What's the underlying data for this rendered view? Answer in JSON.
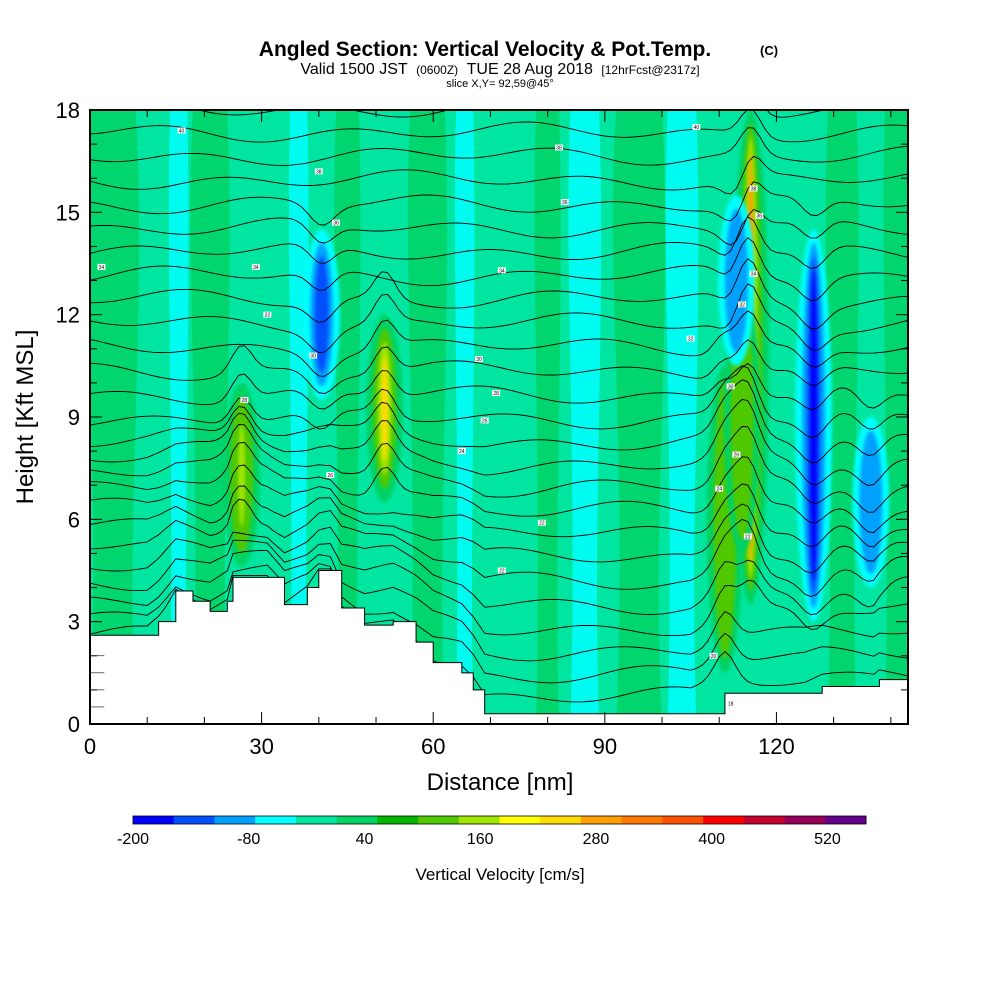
{
  "header": {
    "title": "Angled Section: Vertical Velocity & Pot.Temp.",
    "title_unit": "(C)",
    "valid_prefix": "Valid 1500 JST",
    "valid_utc": "(0600Z)",
    "valid_date": "TUE 28 Aug 2018",
    "forecast_info": "[12hrFcst@2317z]",
    "slice_info": "slice X,Y= 92,59@45°"
  },
  "chart_data": {
    "type": "heatmap",
    "xlabel": "Distance [nm]",
    "ylabel": "Height [Kft MSL]",
    "xlim": [
      0,
      143
    ],
    "ylim": [
      0,
      18
    ],
    "x_ticks": [
      0,
      30,
      60,
      90,
      120
    ],
    "y_ticks": [
      0,
      3,
      6,
      9,
      12,
      15,
      18
    ],
    "colorbar": {
      "label": "Vertical Velocity [cm/s]",
      "tick_labels": [
        "-200",
        "-80",
        "40",
        "160",
        "280",
        "400",
        "520"
      ],
      "tick_values": [
        -200,
        -80,
        40,
        160,
        280,
        400,
        520
      ],
      "range": [
        -200,
        560
      ],
      "colors": [
        "#0000ff",
        "#0050ff",
        "#00a0ff",
        "#00ffff",
        "#00e6a0",
        "#00d264",
        "#00b400",
        "#50c800",
        "#a0e600",
        "#ffff00",
        "#ffdc00",
        "#ffa000",
        "#ff7800",
        "#ff5000",
        "#ff0000",
        "#c80032",
        "#96005a",
        "#64008c"
      ]
    },
    "terrain": [
      [
        0,
        2.6
      ],
      [
        10,
        2.6
      ],
      [
        12,
        3
      ],
      [
        15,
        3.9
      ],
      [
        18,
        3.6
      ],
      [
        21,
        3.3
      ],
      [
        24,
        3.6
      ],
      [
        25,
        4.3
      ],
      [
        31,
        4.3
      ],
      [
        34,
        3.5
      ],
      [
        38,
        4.0
      ],
      [
        40,
        4.5
      ],
      [
        42,
        4.5
      ],
      [
        44,
        3.4
      ],
      [
        48,
        2.9
      ],
      [
        53,
        3.0
      ],
      [
        57,
        2.4
      ],
      [
        60,
        1.8
      ],
      [
        65,
        1.5
      ],
      [
        67,
        1.0
      ],
      [
        69,
        0.3
      ],
      [
        105,
        0.3
      ],
      [
        111,
        0.9
      ],
      [
        125,
        0.9
      ],
      [
        128,
        1.1
      ],
      [
        137,
        1.1
      ],
      [
        138,
        1.3
      ],
      [
        143,
        1.3
      ]
    ],
    "updraft_bands": [
      {
        "x": 26.5,
        "y0": 4.6,
        "y1": 10.0,
        "peak": 150
      },
      {
        "x": 51.5,
        "y0": 6.5,
        "y1": 12.0,
        "peak": 230
      },
      {
        "x": 111,
        "y0": 1.5,
        "y1": 10.5,
        "peak": 120
      },
      {
        "x": 115.5,
        "y0": 3.5,
        "y1": 18.0,
        "peak": 300
      },
      {
        "x": 114,
        "y0": 5.0,
        "y1": 13.0,
        "peak": 130
      }
    ],
    "downdraft_bands": [
      {
        "x": 126.5,
        "y0": 3.0,
        "y1": 14.5,
        "peak": -180
      },
      {
        "x": 136.5,
        "y0": 4.0,
        "y1": 9.0,
        "peak": -110
      },
      {
        "x": 40.5,
        "y0": 9.5,
        "y1": 14.5,
        "peak": -120
      },
      {
        "x": 113,
        "y0": 10.5,
        "y1": 15.5,
        "peak": -110
      }
    ],
    "contour_labels": [
      {
        "x": 16,
        "y": 17.4,
        "text": "40"
      },
      {
        "x": 40,
        "y": 16.2,
        "text": "38"
      },
      {
        "x": 43,
        "y": 14.7,
        "text": "36"
      },
      {
        "x": 2,
        "y": 13.4,
        "text": "34"
      },
      {
        "x": 29,
        "y": 13.4,
        "text": "34"
      },
      {
        "x": 31,
        "y": 12.0,
        "text": "32"
      },
      {
        "x": 39,
        "y": 10.8,
        "text": "30"
      },
      {
        "x": 27,
        "y": 9.5,
        "text": "28"
      },
      {
        "x": 42,
        "y": 7.3,
        "text": "26"
      },
      {
        "x": 65,
        "y": 8.0,
        "text": "24"
      },
      {
        "x": 69,
        "y": 8.9,
        "text": "26"
      },
      {
        "x": 71,
        "y": 9.7,
        "text": "28"
      },
      {
        "x": 68,
        "y": 10.7,
        "text": "30"
      },
      {
        "x": 72,
        "y": 13.3,
        "text": "34"
      },
      {
        "x": 83,
        "y": 15.3,
        "text": "36"
      },
      {
        "x": 82,
        "y": 16.9,
        "text": "38"
      },
      {
        "x": 106,
        "y": 17.5,
        "text": "40"
      },
      {
        "x": 105,
        "y": 11.3,
        "text": "32"
      },
      {
        "x": 79,
        "y": 5.9,
        "text": "22"
      },
      {
        "x": 72,
        "y": 4.5,
        "text": "22"
      },
      {
        "x": 109,
        "y": 2.0,
        "text": "20"
      },
      {
        "x": 112,
        "y": 0.6,
        "text": "18"
      },
      {
        "x": 115,
        "y": 5.5,
        "text": "22"
      },
      {
        "x": 110,
        "y": 6.9,
        "text": "24"
      },
      {
        "x": 113,
        "y": 7.9,
        "text": "26"
      },
      {
        "x": 112,
        "y": 9.9,
        "text": "30"
      },
      {
        "x": 114,
        "y": 12.3,
        "text": "32"
      },
      {
        "x": 116,
        "y": 13.2,
        "text": "34"
      },
      {
        "x": 117,
        "y": 14.9,
        "text": "36"
      },
      {
        "x": 116,
        "y": 15.7,
        "text": "38"
      }
    ]
  }
}
